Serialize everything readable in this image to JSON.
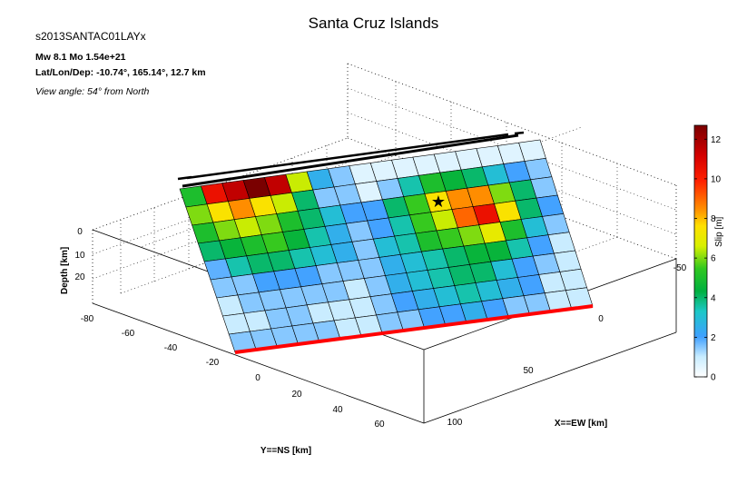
{
  "header": {
    "title": "Santa Cruz Islands",
    "model": "s2013SANTAC01LAYx",
    "magnitude": "Mw 8.1    Mo 1.54e+21",
    "location": "Lat/Lon/Dep: -10.74°, 165.14°, 12.7 km",
    "view": "View angle:  54° from North"
  },
  "colors": {
    "top_edge": "#000000",
    "bottom_edge": "#ff0000",
    "grid_cell_border": "#000000",
    "hypocenter": "#000000"
  },
  "chart_data": {
    "type": "heatmap",
    "title": "Santa Cruz Islands",
    "xlabel": "X==EW [km]",
    "ylabel": "Y==NS [km]",
    "zlabel": "Depth [km]",
    "x_ticks": [
      "-50",
      "0",
      "50",
      "100"
    ],
    "y_ticks": [
      "-80",
      "-60",
      "-40",
      "-20",
      "0",
      "20",
      "40",
      "60"
    ],
    "z_ticks": [
      "0",
      "10",
      "20"
    ],
    "colorbar": {
      "label": "Slip [m]",
      "range": [
        0,
        12.7
      ],
      "ticks": [
        "0",
        "2",
        "4",
        "6",
        "8",
        "10",
        "12"
      ]
    },
    "hypocenter": {
      "row": 2,
      "col": 11
    },
    "rows": 9,
    "cols": 17,
    "slip": [
      [
        5.0,
        10.5,
        11.5,
        12.7,
        11.5,
        6.5,
        2.5,
        1.5,
        0.6,
        0.6,
        0.6,
        0.6,
        0.6,
        0.6,
        0.6,
        0.6,
        0.6
      ],
      [
        6.0,
        7.5,
        8.5,
        7.5,
        6.5,
        4.0,
        1.5,
        1.5,
        0.6,
        1.5,
        3.5,
        5.0,
        4.5,
        4.0,
        3.0,
        2.0,
        1.5
      ],
      [
        5.0,
        6.0,
        6.5,
        6.0,
        5.0,
        4.0,
        3.0,
        2.0,
        2.0,
        4.0,
        5.5,
        7.5,
        8.5,
        8.5,
        6.0,
        4.0,
        1.5
      ],
      [
        4.0,
        4.5,
        5.0,
        5.5,
        4.5,
        3.5,
        2.5,
        1.5,
        2.0,
        3.5,
        5.5,
        6.5,
        9.0,
        10.5,
        7.5,
        4.0,
        2.0
      ],
      [
        1.8,
        3.5,
        4.0,
        4.0,
        3.5,
        3.0,
        2.5,
        1.5,
        3.0,
        3.5,
        5.0,
        5.5,
        6.0,
        7.0,
        5.0,
        3.0,
        1.5
      ],
      [
        1.5,
        1.5,
        2.0,
        2.0,
        2.0,
        1.5,
        1.5,
        1.5,
        2.5,
        3.0,
        3.5,
        4.0,
        4.5,
        4.5,
        3.5,
        2.0,
        1.0
      ],
      [
        1.0,
        1.5,
        1.5,
        1.5,
        1.5,
        1.5,
        1.0,
        1.5,
        2.5,
        3.0,
        3.5,
        4.0,
        4.0,
        3.0,
        2.0,
        1.5,
        1.0
      ],
      [
        1.0,
        1.0,
        1.5,
        1.5,
        1.0,
        1.0,
        1.0,
        1.5,
        2.0,
        2.5,
        3.0,
        3.5,
        3.0,
        2.5,
        2.0,
        1.0,
        1.0
      ],
      [
        1.5,
        1.5,
        1.5,
        1.5,
        1.5,
        1.0,
        1.0,
        1.5,
        1.5,
        2.0,
        2.0,
        2.5,
        2.0,
        1.5,
        1.5,
        1.0,
        1.0
      ]
    ]
  }
}
